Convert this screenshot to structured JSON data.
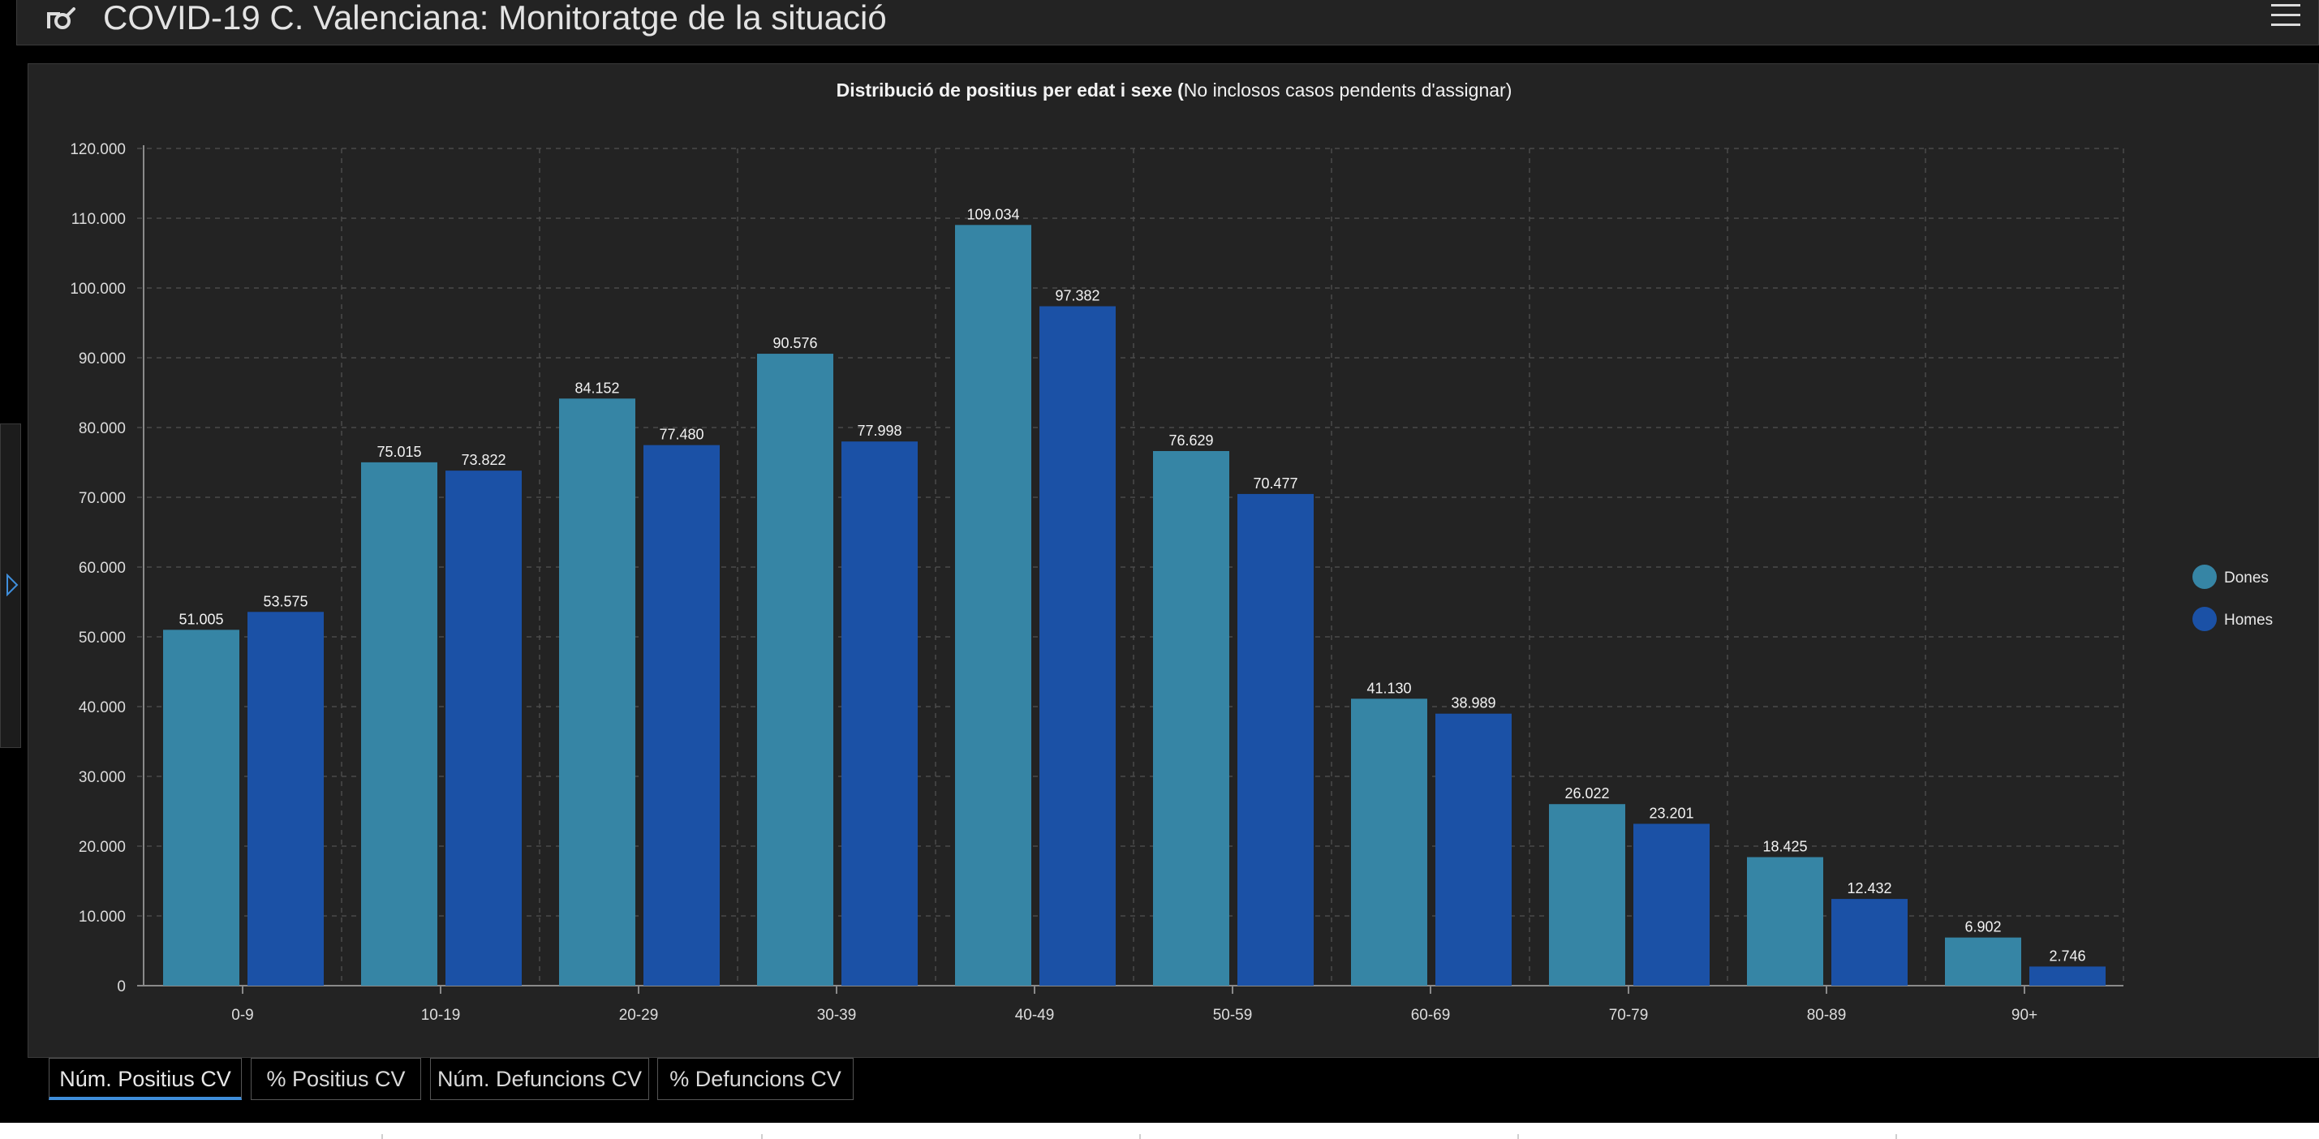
{
  "header": {
    "title": "COVID-19 C. Valenciana: Monitoratge de la situació",
    "app_icon": "logo-icon",
    "menu_icon": "hamburger-menu-icon"
  },
  "sidebar": {
    "toggle_icon": "expand-arrow-icon"
  },
  "chart_data": {
    "type": "bar",
    "title_bold": "Distribució de positius per edat i sexe (",
    "title_rest": "No inclosos casos pendents d'assignar)",
    "categories": [
      "0-9",
      "10-19",
      "20-29",
      "30-39",
      "40-49",
      "50-59",
      "60-69",
      "70-79",
      "80-89",
      "90+"
    ],
    "series": [
      {
        "name": "Dones",
        "color": "#3685a5",
        "values": [
          51005,
          75015,
          84152,
          90576,
          109034,
          76629,
          41130,
          26022,
          18425,
          6902
        ],
        "labels": [
          "51.005",
          "75.015",
          "84.152",
          "90.576",
          "109.034",
          "76.629",
          "41.130",
          "26.022",
          "18.425",
          "6.902"
        ]
      },
      {
        "name": "Homes",
        "color": "#1b51a6",
        "values": [
          53575,
          73822,
          77480,
          77998,
          97382,
          70477,
          38989,
          23201,
          12432,
          2746
        ],
        "labels": [
          "53.575",
          "73.822",
          "77.480",
          "77.998",
          "97.382",
          "70.477",
          "38.989",
          "23.201",
          "12.432",
          "2.746"
        ]
      }
    ],
    "yticks": [
      0,
      10000,
      20000,
      30000,
      40000,
      50000,
      60000,
      70000,
      80000,
      90000,
      100000,
      110000,
      120000
    ],
    "ytick_labels": [
      "0",
      "10.000",
      "20.000",
      "30.000",
      "40.000",
      "50.000",
      "60.000",
      "70.000",
      "80.000",
      "90.000",
      "100.000",
      "110.000",
      "120.000"
    ],
    "ylim": [
      0,
      120000
    ],
    "grid": true,
    "legend_position": "right"
  },
  "tabs": [
    {
      "label": "Núm. Positius CV",
      "active": true
    },
    {
      "label": "% Positius CV",
      "active": false
    },
    {
      "label": "Núm. Defuncions CV",
      "active": false
    },
    {
      "label": "% Defuncions CV",
      "active": false
    }
  ]
}
